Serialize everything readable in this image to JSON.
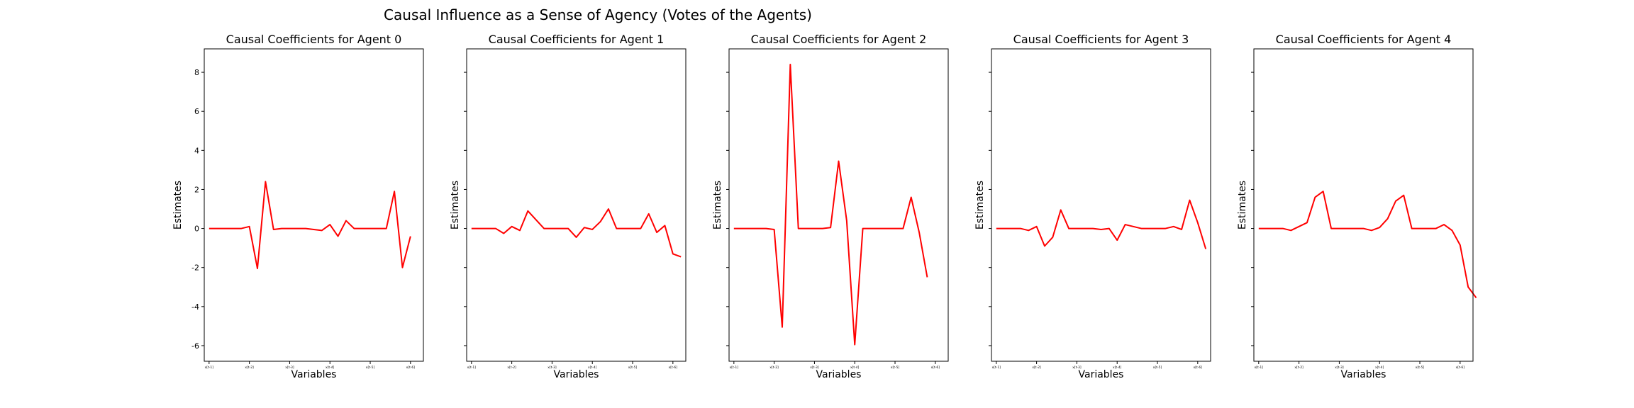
{
  "suptitle": "Causal Influence as a Sense of Agency (Votes of the Agents)",
  "line_color": "#ff0000",
  "chart_data": [
    {
      "type": "line",
      "title": "Causal Coefficients for Agent 0",
      "xlabel": "Variables",
      "ylabel": "Estimates",
      "ylim": [
        -6.8,
        9.2
      ],
      "yticks": [
        -6,
        -4,
        -2,
        0,
        2,
        4,
        6,
        8
      ],
      "xticks": [
        "x[t-1]",
        "x[t-2]",
        "x[t-3]",
        "x[t-4]",
        "x[t-5]",
        "x[t-6]"
      ],
      "xtick_positions": [
        0,
        5,
        10,
        15,
        20,
        25
      ],
      "xlim": [
        -0.6,
        26.6
      ],
      "series": [
        {
          "values": [
            0,
            0,
            0,
            0,
            0,
            0.1,
            -2.05,
            2.4,
            -0.05,
            0,
            0,
            0,
            0,
            -0.05,
            -0.1,
            0.2,
            -0.4,
            0.4,
            0,
            0,
            0,
            0,
            0,
            1.9,
            -2.0,
            -0.4
          ]
        }
      ]
    },
    {
      "type": "line",
      "title": "Causal Coefficients for Agent 1",
      "xlabel": "Variables",
      "ylabel": "Estimates",
      "ylim": [
        -6.8,
        9.2
      ],
      "yticks": [
        -6,
        -4,
        -2,
        0,
        2,
        4,
        6,
        8
      ],
      "xticks": [
        "x[t-1]",
        "x[t-2]",
        "x[t-3]",
        "x[t-4]",
        "x[t-5]",
        "x[t-6]"
      ],
      "xtick_positions": [
        0,
        5,
        10,
        15,
        20,
        25
      ],
      "xlim": [
        -0.6,
        26.6
      ],
      "series": [
        {
          "values": [
            0,
            0,
            0,
            0,
            -0.25,
            0.1,
            -0.1,
            0.9,
            0.45,
            0,
            0,
            0,
            0,
            -0.45,
            0.05,
            -0.05,
            0.35,
            1.0,
            0,
            0,
            0,
            0,
            0.75,
            -0.2,
            0.15,
            -1.3,
            -1.45
          ]
        }
      ]
    },
    {
      "type": "line",
      "title": "Causal Coefficients for Agent 2",
      "xlabel": "Variables",
      "ylabel": "Estimates",
      "ylim": [
        -6.8,
        9.2
      ],
      "yticks": [
        -6,
        -4,
        -2,
        0,
        2,
        4,
        6,
        8
      ],
      "xticks": [
        "x[t-1]",
        "x[t-2]",
        "x[t-3]",
        "x[t-4]",
        "x[t-5]",
        "x[t-6]"
      ],
      "xtick_positions": [
        0,
        5,
        10,
        15,
        20,
        25
      ],
      "xlim": [
        -0.6,
        26.6
      ],
      "series": [
        {
          "values": [
            0,
            0,
            0,
            0,
            0,
            -0.05,
            -5.05,
            8.4,
            0,
            0,
            0,
            0,
            0.05,
            3.45,
            0.4,
            -5.95,
            0,
            0,
            0,
            0,
            0,
            0,
            1.6,
            -0.2,
            -2.5
          ]
        }
      ]
    },
    {
      "type": "line",
      "title": "Causal Coefficients for Agent 3",
      "xlabel": "Variables",
      "ylabel": "Estimates",
      "ylim": [
        -6.8,
        9.2
      ],
      "yticks": [
        -6,
        -4,
        -2,
        0,
        2,
        4,
        6,
        8
      ],
      "xticks": [
        "x[t-1]",
        "x[t-2]",
        "x[t-3]",
        "x[t-4]",
        "x[t-5]",
        "x[t-6]"
      ],
      "xtick_positions": [
        0,
        5,
        10,
        15,
        20,
        25
      ],
      "xlim": [
        -0.6,
        26.6
      ],
      "series": [
        {
          "values": [
            0,
            0,
            0,
            0,
            -0.1,
            0.1,
            -0.9,
            -0.45,
            0.95,
            0,
            0,
            0,
            0,
            -0.05,
            0,
            -0.6,
            0.2,
            0.1,
            0,
            0,
            0,
            0,
            0.1,
            -0.05,
            1.45,
            0.3,
            -1.05
          ]
        }
      ]
    },
    {
      "type": "line",
      "title": "Causal Coefficients for Agent 4",
      "xlabel": "Variables",
      "ylabel": "Estimates",
      "ylim": [
        -6.8,
        9.2
      ],
      "yticks": [
        -6,
        -4,
        -2,
        0,
        2,
        4,
        6,
        8
      ],
      "xticks": [
        "x[t-1]",
        "x[t-2]",
        "x[t-3]",
        "x[t-4]",
        "x[t-5]",
        "x[t-6]"
      ],
      "xtick_positions": [
        0,
        5,
        10,
        15,
        20,
        25
      ],
      "xlim": [
        -0.6,
        26.6
      ],
      "series": [
        {
          "values": [
            0,
            0,
            0,
            0,
            -0.1,
            0.1,
            0.3,
            1.6,
            1.9,
            0,
            0,
            0,
            0,
            0,
            -0.1,
            0.05,
            0.5,
            1.4,
            1.7,
            0,
            0,
            0,
            0,
            0.2,
            -0.1,
            -0.85,
            -3.0,
            -3.55
          ]
        }
      ]
    }
  ]
}
